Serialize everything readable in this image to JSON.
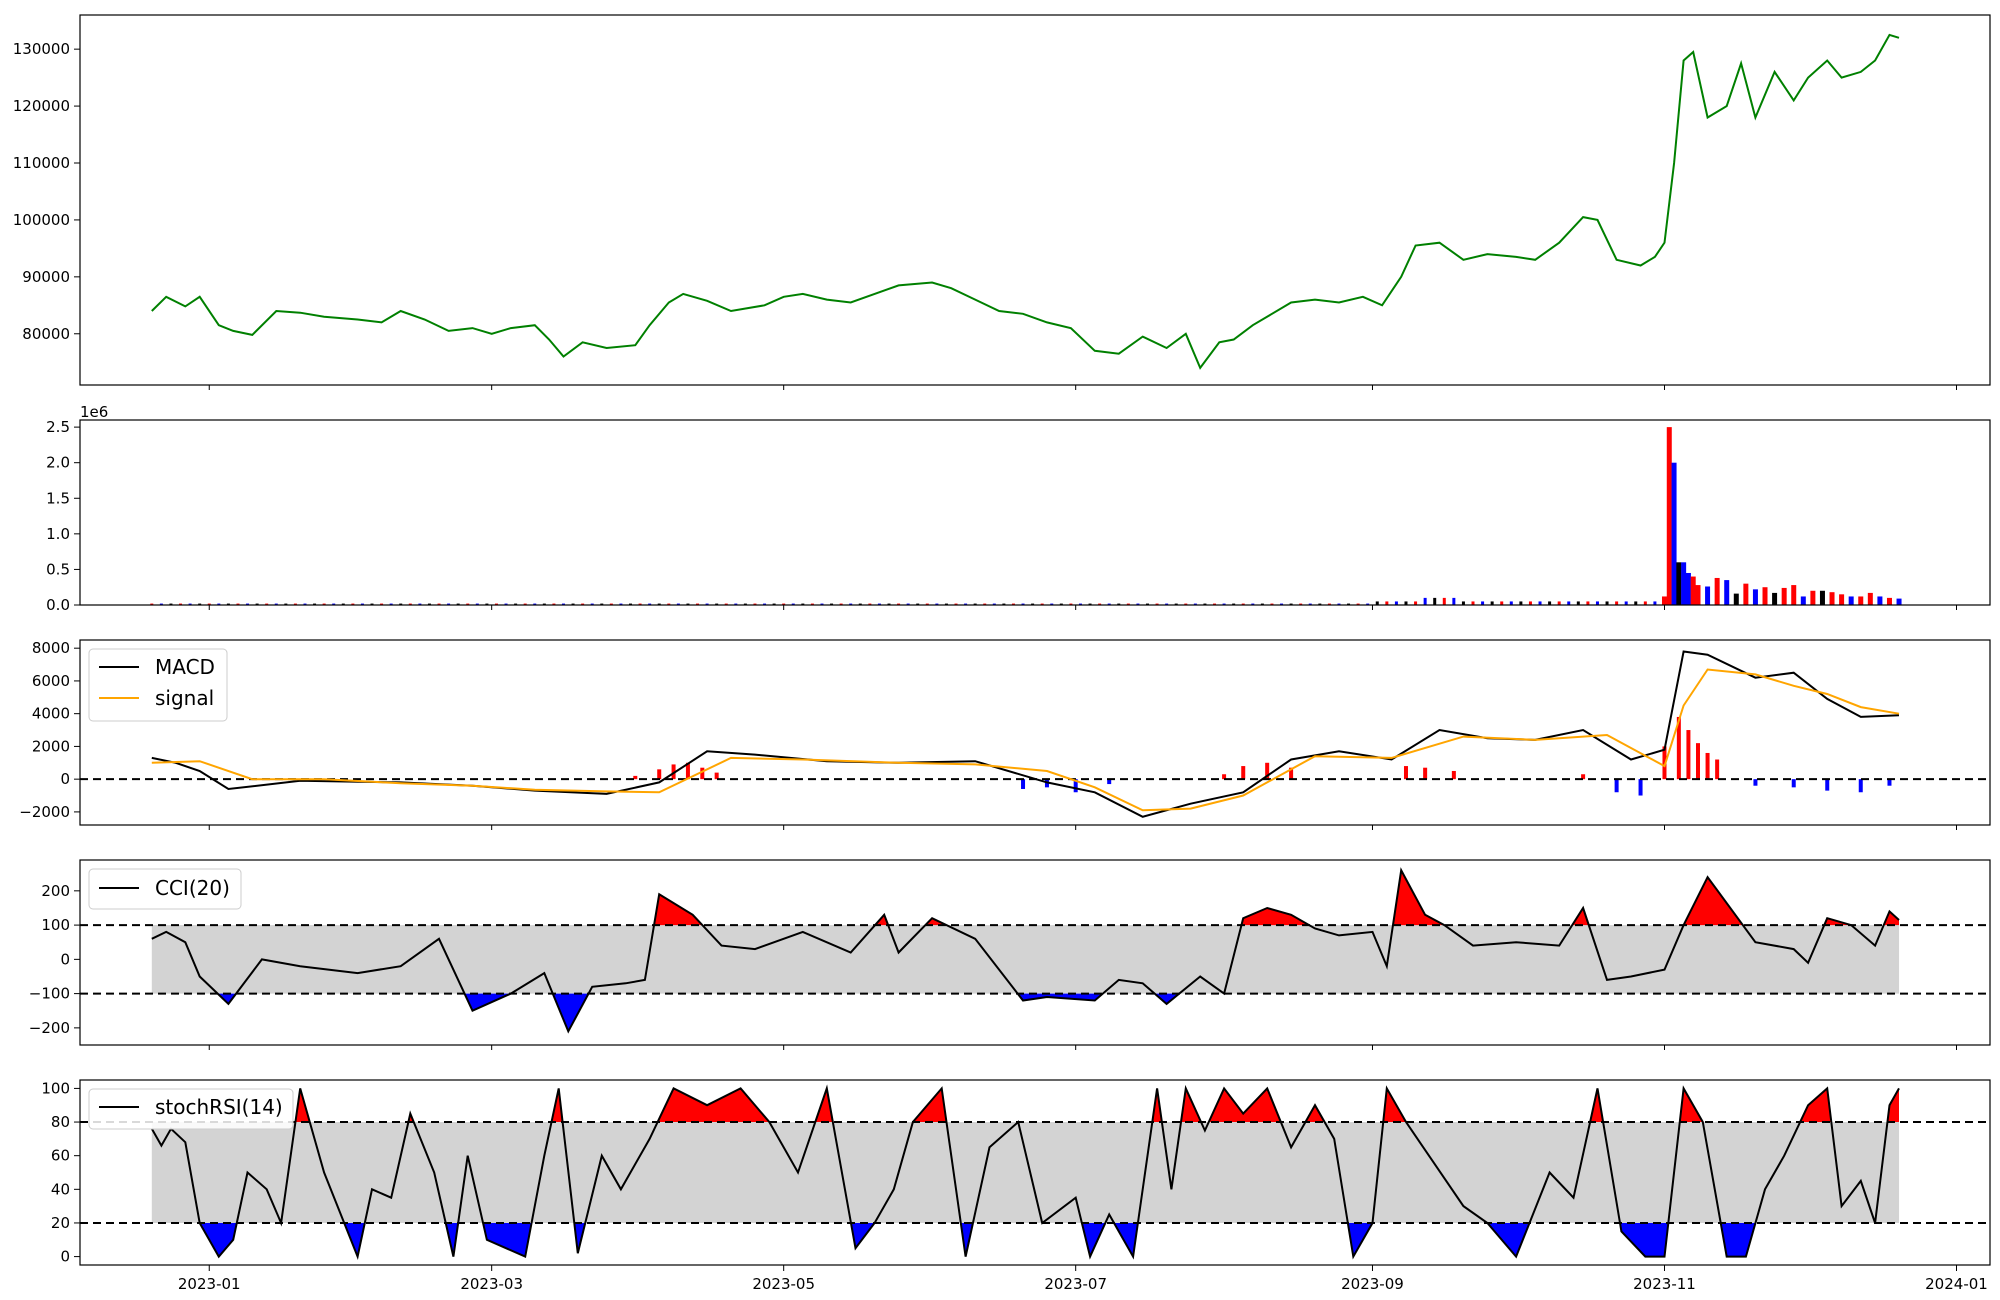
{
  "chart_data": [
    {
      "type": "line",
      "panel": "price",
      "ylim": [
        71000,
        136000
      ],
      "yticks": [
        80000,
        90000,
        100000,
        110000,
        120000,
        130000
      ],
      "color": "#008000",
      "x": [
        "2022-12-20",
        "2022-12-23",
        "2022-12-27",
        "2022-12-30",
        "2023-01-03",
        "2023-01-06",
        "2023-01-10",
        "2023-01-15",
        "2023-01-20",
        "2023-01-25",
        "2023-02-01",
        "2023-02-06",
        "2023-02-10",
        "2023-02-15",
        "2023-02-20",
        "2023-02-25",
        "2023-03-01",
        "2023-03-05",
        "2023-03-10",
        "2023-03-13",
        "2023-03-16",
        "2023-03-20",
        "2023-03-25",
        "2023-03-31",
        "2023-04-03",
        "2023-04-07",
        "2023-04-10",
        "2023-04-15",
        "2023-04-20",
        "2023-04-27",
        "2023-05-01",
        "2023-05-05",
        "2023-05-10",
        "2023-05-15",
        "2023-05-20",
        "2023-05-25",
        "2023-06-01",
        "2023-06-05",
        "2023-06-10",
        "2023-06-15",
        "2023-06-20",
        "2023-06-25",
        "2023-06-30",
        "2023-07-05",
        "2023-07-10",
        "2023-07-15",
        "2023-07-20",
        "2023-07-24",
        "2023-07-27",
        "2023-07-31",
        "2023-08-03",
        "2023-08-07",
        "2023-08-15",
        "2023-08-20",
        "2023-08-25",
        "2023-08-30",
        "2023-09-03",
        "2023-09-07",
        "2023-09-10",
        "2023-09-15",
        "2023-09-20",
        "2023-09-25",
        "2023-10-01",
        "2023-10-05",
        "2023-10-10",
        "2023-10-15",
        "2023-10-18",
        "2023-10-22",
        "2023-10-27",
        "2023-10-30",
        "2023-11-01",
        "2023-11-03",
        "2023-11-05",
        "2023-11-07",
        "2023-11-10",
        "2023-11-14",
        "2023-11-17",
        "2023-11-20",
        "2023-11-24",
        "2023-11-28",
        "2023-12-01",
        "2023-12-05",
        "2023-12-08",
        "2023-12-12",
        "2023-12-15",
        "2023-12-18",
        "2023-12-20"
      ],
      "values": [
        84000,
        86500,
        84800,
        86500,
        81500,
        80500,
        79800,
        84000,
        83700,
        83000,
        82500,
        82000,
        84000,
        82500,
        80500,
        81000,
        80000,
        81000,
        81500,
        79000,
        76000,
        78500,
        77500,
        78000,
        81500,
        85500,
        87000,
        85800,
        84000,
        85000,
        86500,
        87000,
        86000,
        85500,
        87000,
        88500,
        89000,
        88000,
        86000,
        84000,
        83500,
        82000,
        81000,
        77000,
        76500,
        79500,
        77500,
        80000,
        74000,
        78500,
        79000,
        81500,
        85500,
        86000,
        85500,
        86500,
        85000,
        90000,
        95500,
        96000,
        93000,
        94000,
        93500,
        93000,
        96000,
        100500,
        100000,
        93000,
        92000,
        93500,
        96000,
        110000,
        128000,
        129500,
        118000,
        120000,
        127500,
        118000,
        126000,
        121000,
        125000,
        128000,
        125000,
        126000,
        128000,
        132500,
        132000
      ]
    },
    {
      "type": "bar",
      "panel": "volume",
      "scale_label": "1e6",
      "ylim": [
        0,
        2.6
      ],
      "yticks": [
        0.0,
        0.5,
        1.0,
        1.5,
        2.0,
        2.5
      ],
      "tick_labels": [
        "0.0",
        "0.5",
        "1.0",
        "1.5",
        "2.0",
        "2.5"
      ],
      "x": [
        "2023-11-01",
        "2023-11-02",
        "2023-11-03",
        "2023-11-04",
        "2023-11-05",
        "2023-11-06",
        "2023-11-07",
        "2023-11-08",
        "2023-11-10",
        "2023-11-12",
        "2023-11-14",
        "2023-11-16",
        "2023-11-18",
        "2023-11-20",
        "2023-11-22",
        "2023-11-24",
        "2023-11-26",
        "2023-11-28",
        "2023-11-30",
        "2023-12-02",
        "2023-12-04",
        "2023-12-06",
        "2023-12-08",
        "2023-12-10",
        "2023-12-12",
        "2023-12-14",
        "2023-12-16",
        "2023-12-18",
        "2023-12-20"
      ],
      "values": [
        0.12,
        2.5,
        2.0,
        0.6,
        0.6,
        0.45,
        0.4,
        0.28,
        0.26,
        0.38,
        0.35,
        0.16,
        0.3,
        0.22,
        0.25,
        0.17,
        0.24,
        0.28,
        0.12,
        0.2,
        0.2,
        0.18,
        0.15,
        0.12,
        0.12,
        0.17,
        0.12,
        0.1,
        0.09
      ],
      "colors": [
        "red",
        "red",
        "blue",
        "black",
        "blue",
        "blue",
        "red",
        "red",
        "blue",
        "red",
        "blue",
        "black",
        "red",
        "blue",
        "red",
        "black",
        "red",
        "red",
        "blue",
        "red",
        "black",
        "red",
        "red",
        "blue",
        "red",
        "red",
        "blue",
        "red",
        "blue"
      ],
      "baseline_volume": 0.02
    },
    {
      "type": "line",
      "panel": "macd",
      "ylim": [
        -2800,
        8500
      ],
      "yticks": [
        -2000,
        0,
        2000,
        4000,
        6000,
        8000
      ],
      "tick_labels": [
        "−2000",
        "0",
        "2000",
        "4000",
        "6000",
        "8000"
      ],
      "reference_line": 0,
      "series": [
        {
          "name": "MACD",
          "color": "#000000",
          "x": [
            "2022-12-20",
            "2022-12-25",
            "2022-12-30",
            "2023-01-05",
            "2023-01-20",
            "2023-02-10",
            "2023-02-25",
            "2023-03-10",
            "2023-03-25",
            "2023-04-05",
            "2023-04-15",
            "2023-04-25",
            "2023-05-10",
            "2023-05-25",
            "2023-06-10",
            "2023-06-25",
            "2023-07-05",
            "2023-07-15",
            "2023-07-25",
            "2023-08-05",
            "2023-08-15",
            "2023-08-25",
            "2023-09-05",
            "2023-09-15",
            "2023-09-25",
            "2023-10-05",
            "2023-10-15",
            "2023-10-25",
            "2023-11-01",
            "2023-11-05",
            "2023-11-10",
            "2023-11-20",
            "2023-11-28",
            "2023-12-05",
            "2023-12-12",
            "2023-12-20"
          ],
          "values": [
            1300,
            1000,
            500,
            -600,
            -100,
            -200,
            -400,
            -700,
            -900,
            -200,
            1700,
            1500,
            1100,
            1000,
            1100,
            -200,
            -800,
            -2300,
            -1500,
            -800,
            1200,
            1700,
            1200,
            3000,
            2500,
            2400,
            3000,
            1200,
            1800,
            7800,
            7600,
            6200,
            6500,
            4900,
            3800,
            3900
          ]
        },
        {
          "name": "signal",
          "color": "#FFA500",
          "x": [
            "2022-12-20",
            "2022-12-30",
            "2023-01-10",
            "2023-01-25",
            "2023-02-10",
            "2023-02-25",
            "2023-03-10",
            "2023-03-25",
            "2023-04-05",
            "2023-04-20",
            "2023-05-05",
            "2023-05-25",
            "2023-06-10",
            "2023-06-25",
            "2023-07-05",
            "2023-07-15",
            "2023-07-25",
            "2023-08-05",
            "2023-08-20",
            "2023-09-05",
            "2023-09-20",
            "2023-10-05",
            "2023-10-20",
            "2023-11-01",
            "2023-11-05",
            "2023-11-10",
            "2023-11-20",
            "2023-11-28",
            "2023-12-05",
            "2023-12-12",
            "2023-12-20"
          ],
          "values": [
            1000,
            1100,
            0,
            0,
            -250,
            -400,
            -650,
            -750,
            -800,
            1300,
            1200,
            1000,
            900,
            500,
            -500,
            -1900,
            -1800,
            -1000,
            1400,
            1300,
            2600,
            2400,
            2700,
            800,
            4500,
            6700,
            6400,
            5700,
            5200,
            4400,
            4000
          ]
        }
      ],
      "histogram": {
        "x": [
          "2023-03-31",
          "2023-04-05",
          "2023-04-08",
          "2023-04-11",
          "2023-04-14",
          "2023-04-17",
          "2023-06-20",
          "2023-06-25",
          "2023-07-01",
          "2023-07-08",
          "2023-08-01",
          "2023-08-05",
          "2023-08-10",
          "2023-08-15",
          "2023-09-08",
          "2023-09-12",
          "2023-09-18",
          "2023-10-15",
          "2023-10-22",
          "2023-10-27",
          "2023-11-01",
          "2023-11-04",
          "2023-11-06",
          "2023-11-08",
          "2023-11-10",
          "2023-11-12",
          "2023-11-20",
          "2023-11-28",
          "2023-12-05",
          "2023-12-12",
          "2023-12-18"
        ],
        "values": [
          200,
          600,
          900,
          1000,
          700,
          400,
          -600,
          -500,
          -800,
          -300,
          300,
          800,
          1000,
          700,
          800,
          700,
          500,
          300,
          -800,
          -1000,
          2000,
          3800,
          3000,
          2200,
          1600,
          1200,
          -400,
          -500,
          -700,
          -800,
          -400
        ],
        "positive_color": "red",
        "negative_color": "blue"
      }
    },
    {
      "type": "line",
      "panel": "cci",
      "ylim": [
        -250,
        290
      ],
      "yticks": [
        -200,
        -100,
        0,
        100,
        200
      ],
      "tick_labels": [
        "−200",
        "−100",
        "0",
        "100",
        "200"
      ],
      "reference_lines": [
        100,
        -100
      ],
      "band_color": "#D3D3D3",
      "series": [
        {
          "name": "CCI(20)",
          "color": "#000000",
          "x": [
            "2022-12-20",
            "2022-12-23",
            "2022-12-27",
            "2022-12-30",
            "2023-01-05",
            "2023-01-12",
            "2023-01-20",
            "2023-02-01",
            "2023-02-10",
            "2023-02-18",
            "2023-02-25",
            "2023-03-05",
            "2023-03-12",
            "2023-03-17",
            "2023-03-22",
            "2023-03-29",
            "2023-04-02",
            "2023-04-05",
            "2023-04-12",
            "2023-04-18",
            "2023-04-25",
            "2023-05-05",
            "2023-05-15",
            "2023-05-22",
            "2023-05-25",
            "2023-06-01",
            "2023-06-10",
            "2023-06-20",
            "2023-06-25",
            "2023-07-05",
            "2023-07-10",
            "2023-07-15",
            "2023-07-20",
            "2023-07-27",
            "2023-08-01",
            "2023-08-05",
            "2023-08-10",
            "2023-08-15",
            "2023-08-20",
            "2023-08-25",
            "2023-09-01",
            "2023-09-04",
            "2023-09-07",
            "2023-09-12",
            "2023-09-16",
            "2023-09-22",
            "2023-10-01",
            "2023-10-10",
            "2023-10-15",
            "2023-10-20",
            "2023-10-25",
            "2023-11-01",
            "2023-11-05",
            "2023-11-10",
            "2023-11-20",
            "2023-11-28",
            "2023-12-01",
            "2023-12-05",
            "2023-12-10",
            "2023-12-15",
            "2023-12-18",
            "2023-12-20"
          ],
          "values": [
            60,
            80,
            50,
            -50,
            -130,
            0,
            -20,
            -40,
            -20,
            60,
            -150,
            -100,
            -40,
            -210,
            -80,
            -70,
            -60,
            190,
            130,
            40,
            30,
            80,
            20,
            130,
            20,
            120,
            60,
            -120,
            -110,
            -120,
            -60,
            -70,
            -130,
            -50,
            -100,
            120,
            150,
            130,
            90,
            70,
            80,
            -20,
            260,
            130,
            100,
            40,
            50,
            40,
            150,
            -60,
            -50,
            -30,
            100,
            240,
            50,
            30,
            -10,
            120,
            100,
            40,
            140,
            115
          ]
        }
      ]
    },
    {
      "type": "line",
      "panel": "stochrsi",
      "ylim": [
        -5,
        105
      ],
      "yticks": [
        0,
        20,
        40,
        60,
        80,
        100
      ],
      "tick_labels": [
        "0",
        "20",
        "40",
        "60",
        "80",
        "100"
      ],
      "reference_lines": [
        80,
        20
      ],
      "band_color": "#D3D3D3",
      "series": [
        {
          "name": "stochRSI(14)",
          "color": "#000000",
          "x": [
            "2022-12-20",
            "2022-12-22",
            "2022-12-24",
            "2022-12-27",
            "2022-12-30",
            "2023-01-03",
            "2023-01-06",
            "2023-01-09",
            "2023-01-13",
            "2023-01-16",
            "2023-01-20",
            "2023-01-25",
            "2023-02-01",
            "2023-02-04",
            "2023-02-08",
            "2023-02-12",
            "2023-02-17",
            "2023-02-21",
            "2023-02-24",
            "2023-02-28",
            "2023-03-04",
            "2023-03-08",
            "2023-03-12",
            "2023-03-15",
            "2023-03-19",
            "2023-03-24",
            "2023-03-28",
            "2023-04-03",
            "2023-04-08",
            "2023-04-15",
            "2023-04-22",
            "2023-04-28",
            "2023-05-04",
            "2023-05-10",
            "2023-05-16",
            "2023-05-20",
            "2023-05-24",
            "2023-05-28",
            "2023-06-03",
            "2023-06-08",
            "2023-06-13",
            "2023-06-19",
            "2023-06-24",
            "2023-07-01",
            "2023-07-04",
            "2023-07-08",
            "2023-07-13",
            "2023-07-18",
            "2023-07-21",
            "2023-07-24",
            "2023-07-28",
            "2023-08-01",
            "2023-08-05",
            "2023-08-10",
            "2023-08-15",
            "2023-08-20",
            "2023-08-24",
            "2023-08-28",
            "2023-09-01",
            "2023-09-04",
            "2023-09-08",
            "2023-09-14",
            "2023-09-20",
            "2023-09-25",
            "2023-10-01",
            "2023-10-08",
            "2023-10-13",
            "2023-10-18",
            "2023-10-23",
            "2023-10-28",
            "2023-11-01",
            "2023-11-05",
            "2023-11-09",
            "2023-11-14",
            "2023-11-18",
            "2023-11-22",
            "2023-11-26",
            "2023-12-01",
            "2023-12-05",
            "2023-12-08",
            "2023-12-12",
            "2023-12-15",
            "2023-12-18",
            "2023-12-20"
          ],
          "values": [
            76,
            66,
            76,
            68,
            20,
            0,
            10,
            50,
            40,
            20,
            100,
            50,
            0,
            40,
            35,
            85,
            50,
            0,
            60,
            10,
            5,
            0,
            60,
            100,
            2,
            60,
            40,
            70,
            100,
            90,
            100,
            80,
            50,
            100,
            5,
            20,
            40,
            80,
            100,
            0,
            65,
            80,
            20,
            35,
            0,
            25,
            0,
            100,
            40,
            100,
            75,
            100,
            85,
            100,
            65,
            90,
            70,
            0,
            20,
            100,
            80,
            55,
            30,
            20,
            0,
            50,
            35,
            100,
            15,
            0,
            0,
            100,
            80,
            0,
            0,
            40,
            60,
            90,
            100,
            30,
            45,
            20,
            90,
            100
          ]
        }
      ]
    }
  ],
  "x_axis": {
    "min": "2022-12-05",
    "max": "2024-01-08",
    "ticks": [
      "2023-01-01",
      "2023-03-01",
      "2023-05-01",
      "2023-07-01",
      "2023-09-01",
      "2023-11-01",
      "2024-01-01"
    ],
    "tick_labels": [
      "2023-01",
      "2023-03",
      "2023-05",
      "2023-07",
      "2023-09",
      "2023-11",
      "2024-01"
    ]
  },
  "legend_placement": "upper-left",
  "positive_fill_color": "red",
  "negative_fill_color": "blue"
}
